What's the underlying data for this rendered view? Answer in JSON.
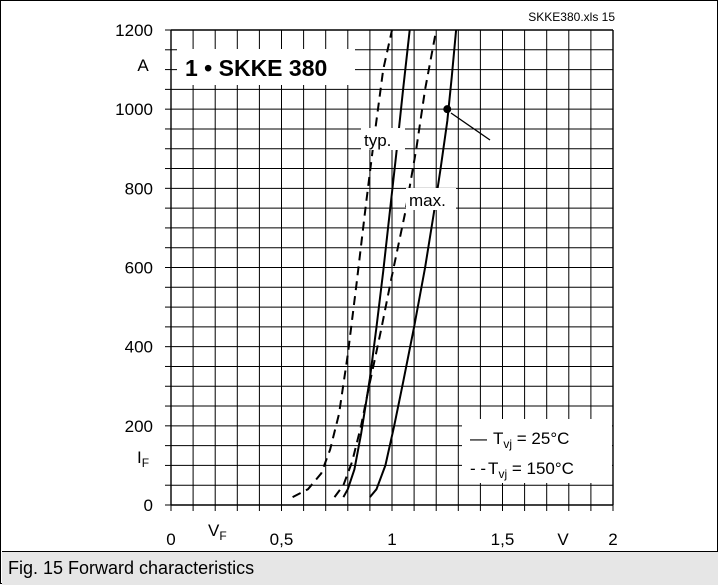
{
  "file_ref": "SKKE380.xls 15",
  "caption": "Fig. 15 Forward characteristics",
  "chart_data": {
    "type": "line",
    "title": "1 • SKKE 380",
    "xlabel": "V",
    "xlabel_symbol": {
      "base": "V",
      "sub": "F"
    },
    "ylabel_unit": "A",
    "ylabel_symbol": {
      "base": "I",
      "sub": "F"
    },
    "xlim": [
      0,
      2
    ],
    "ylim": [
      0,
      1200
    ],
    "x_major_ticks": [
      "0",
      "0,5",
      "1",
      "1,5",
      "2"
    ],
    "x_major_values": [
      0,
      0.5,
      1,
      1.5,
      2
    ],
    "y_major_ticks": [
      "0",
      "200",
      "400",
      "600",
      "800",
      "1000",
      "1200"
    ],
    "y_major_values": [
      0,
      200,
      400,
      600,
      800,
      1000,
      1200
    ],
    "grid": true,
    "annotations": {
      "typ": "typ.",
      "max": "max."
    },
    "legend": {
      "position": "bottom-right",
      "entries": [
        {
          "marker": "—",
          "symbol": "T",
          "sub": "vj",
          "text": " =  25°C",
          "style": "solid"
        },
        {
          "marker": "- -",
          "symbol": "T",
          "sub": "vj",
          "text": " = 150°C",
          "style": "dashed"
        }
      ]
    },
    "series": [
      {
        "curve": "typ-150C",
        "style": "dashed",
        "x": [
          0.55,
          0.62,
          0.68,
          0.72,
          0.76,
          0.8,
          0.84,
          0.88,
          0.92,
          0.96,
          1.0
        ],
        "y": [
          20,
          40,
          80,
          140,
          230,
          380,
          560,
          750,
          930,
          1100,
          1200
        ]
      },
      {
        "curve": "typ-25C",
        "style": "solid",
        "x": [
          0.78,
          0.8,
          0.83,
          0.86,
          0.9,
          0.93,
          0.96,
          0.99,
          1.02,
          1.05,
          1.08
        ],
        "y": [
          20,
          40,
          90,
          180,
          320,
          450,
          590,
          740,
          890,
          1050,
          1200
        ]
      },
      {
        "curve": "max-150C",
        "style": "dashed",
        "x": [
          0.74,
          0.78,
          0.82,
          0.86,
          0.9,
          0.95,
          1.0,
          1.06,
          1.11,
          1.15,
          1.2
        ],
        "y": [
          20,
          50,
          110,
          200,
          310,
          440,
          580,
          740,
          900,
          1050,
          1200
        ]
      },
      {
        "curve": "max-25C",
        "style": "solid",
        "x": [
          0.9,
          0.93,
          0.97,
          1.01,
          1.05,
          1.1,
          1.15,
          1.19,
          1.22,
          1.25,
          1.27,
          1.29
        ],
        "y": [
          20,
          40,
          100,
          200,
          310,
          450,
          600,
          740,
          850,
          970,
          1080,
          1200
        ]
      }
    ],
    "marker_point": {
      "x": 1.25,
      "y": 1000
    }
  }
}
